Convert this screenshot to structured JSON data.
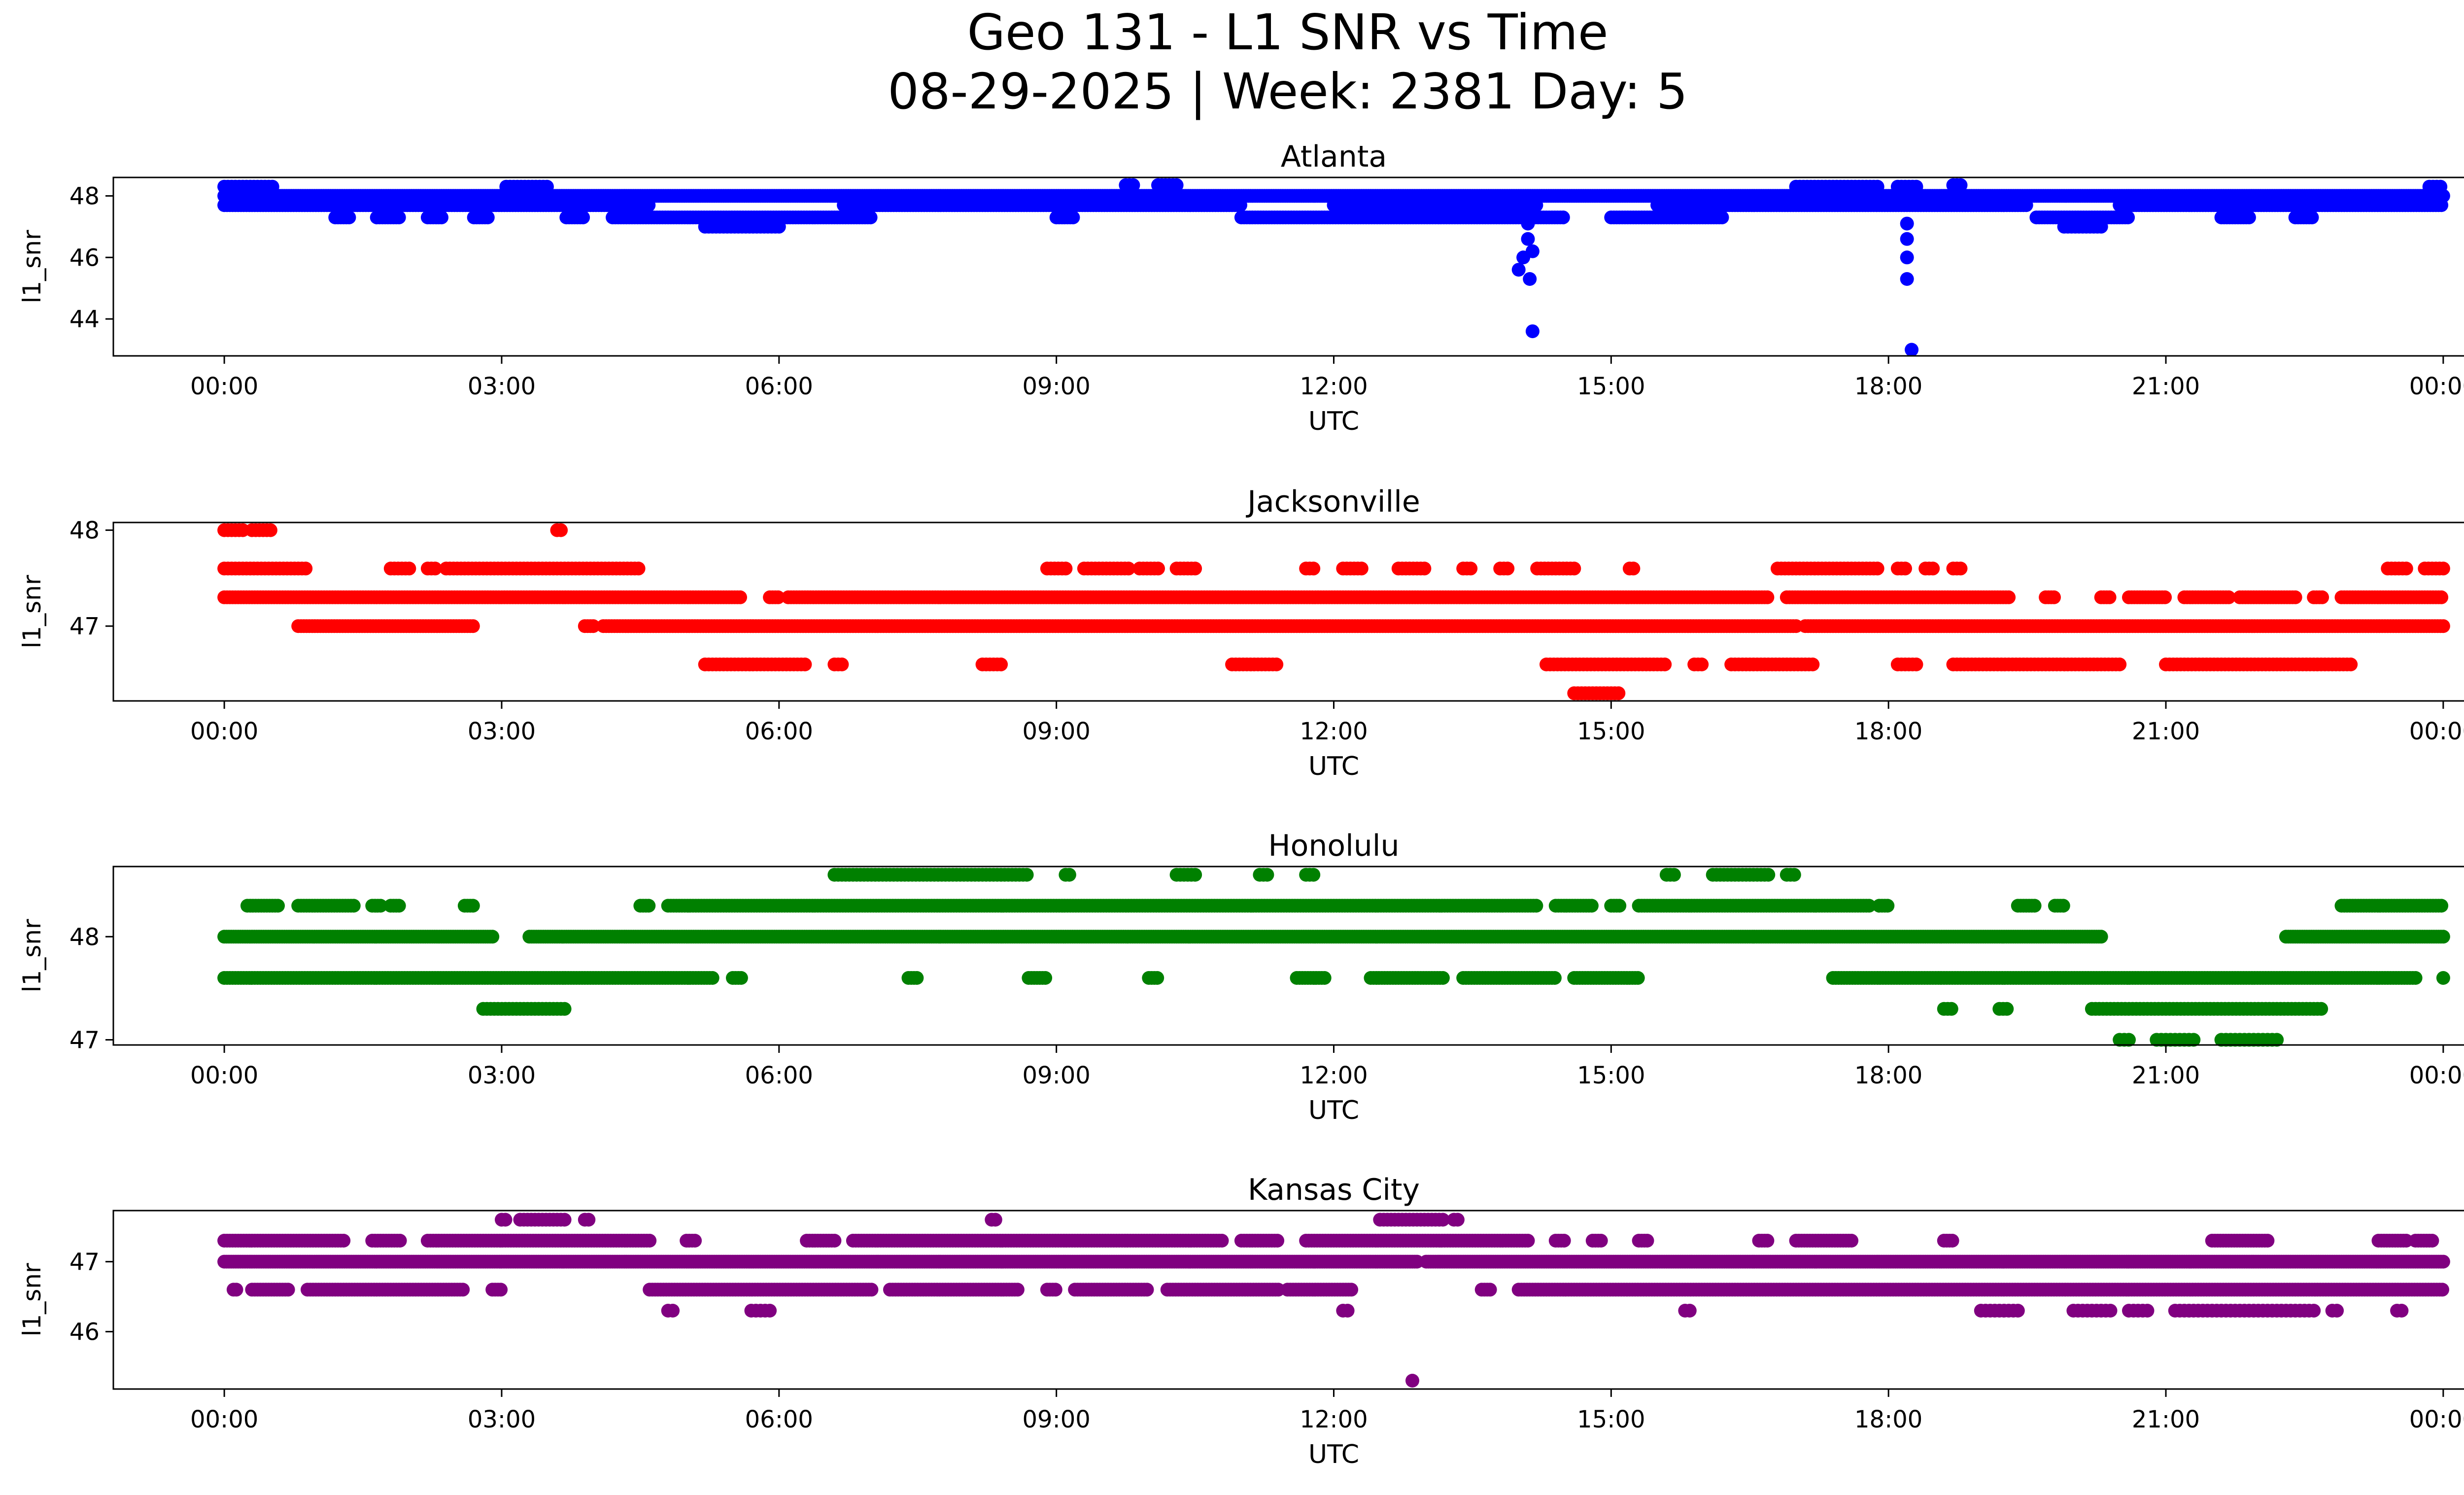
{
  "figure": {
    "title_line1": "Geo 131 - L1 SNR vs Time",
    "title_line2": "08-29-2025 | Week: 2381 Day: 5"
  },
  "chart_data": [
    {
      "type": "scatter",
      "title": "Atlanta",
      "xlabel": "UTC",
      "ylabel": "l1_snr",
      "color": "#0000ff",
      "xlim_hours": [
        -1.2,
        25.2
      ],
      "ylim": [
        42.8,
        48.6
      ],
      "xticks": [
        "00:00",
        "03:00",
        "06:00",
        "09:00",
        "12:00",
        "15:00",
        "18:00",
        "21:00",
        "00:00"
      ],
      "yticks": [
        44,
        46,
        48
      ],
      "bands": [
        {
          "y": 48.3,
          "segs": [
            [
              0,
              0.55
            ],
            [
              3.05,
              3.5
            ],
            [
              17.0,
              17.9
            ],
            [
              18.1,
              18.3
            ],
            [
              23.85,
              24.0
            ]
          ],
          "step": 0.04
        },
        {
          "y": 48.0,
          "segs": [
            [
              0,
              24.0
            ]
          ],
          "step": 0.025
        },
        {
          "y": 47.7,
          "segs": [
            [
              0,
              4.6
            ],
            [
              6.7,
              11.0
            ],
            [
              12.0,
              14.2
            ],
            [
              15.5,
              19.5
            ],
            [
              20.5,
              24.0
            ]
          ],
          "step": 0.03
        },
        {
          "y": 47.3,
          "segs": [
            [
              1.2,
              1.35
            ],
            [
              1.65,
              1.9
            ],
            [
              2.2,
              2.35
            ],
            [
              2.7,
              2.85
            ],
            [
              3.7,
              3.9
            ],
            [
              4.2,
              7.0
            ],
            [
              9.0,
              9.2
            ],
            [
              11.0,
              14.5
            ],
            [
              15.0,
              16.2
            ],
            [
              19.6,
              20.6
            ],
            [
              21.6,
              21.9
            ],
            [
              22.4,
              22.6
            ]
          ],
          "step": 0.03
        },
        {
          "y": 47.0,
          "segs": [
            [
              5.2,
              6.0
            ],
            [
              19.9,
              20.3
            ]
          ],
          "step": 0.04
        },
        {
          "y": 48.35,
          "segs": [
            [
              9.75,
              9.85
            ],
            [
              10.1,
              10.3
            ],
            [
              18.7,
              18.8
            ]
          ],
          "step": 0.04
        }
      ],
      "points": [
        [
          14.05,
          46.0
        ],
        [
          14.1,
          46.6
        ],
        [
          14.15,
          46.2
        ],
        [
          14.0,
          45.6
        ],
        [
          14.12,
          45.3
        ],
        [
          14.15,
          43.6
        ],
        [
          18.2,
          46.6
        ],
        [
          18.2,
          46.0
        ],
        [
          18.2,
          45.3
        ],
        [
          18.25,
          43.0
        ],
        [
          14.1,
          47.1
        ],
        [
          18.2,
          47.1
        ]
      ]
    },
    {
      "type": "scatter",
      "title": "Jacksonville",
      "xlabel": "UTC",
      "ylabel": "l1_snr",
      "color": "#ff0000",
      "xlim_hours": [
        -1.2,
        25.2
      ],
      "ylim": [
        46.22,
        48.08
      ],
      "xticks": [
        "00:00",
        "03:00",
        "06:00",
        "09:00",
        "12:00",
        "15:00",
        "18:00",
        "21:00",
        "00:00"
      ],
      "yticks": [
        47,
        48
      ],
      "bands": [
        {
          "y": 48.0,
          "segs": [
            [
              0.0,
              0.2
            ],
            [
              0.3,
              0.5
            ],
            [
              3.6,
              3.65
            ]
          ],
          "step": 0.04
        },
        {
          "y": 47.6,
          "segs": [
            [
              0,
              0.9
            ],
            [
              1.8,
              2.0
            ],
            [
              2.2,
              2.3
            ],
            [
              2.4,
              4.5
            ],
            [
              8.9,
              9.1
            ],
            [
              9.3,
              9.8
            ],
            [
              9.9,
              10.1
            ],
            [
              10.3,
              10.5
            ],
            [
              11.7,
              11.8
            ],
            [
              12.1,
              12.3
            ],
            [
              12.7,
              13.0
            ],
            [
              13.4,
              13.5
            ],
            [
              13.8,
              13.9
            ],
            [
              14.2,
              14.6
            ],
            [
              15.2,
              15.25
            ],
            [
              16.8,
              17.9
            ],
            [
              18.1,
              18.2
            ],
            [
              18.4,
              18.5
            ],
            [
              18.7,
              18.8
            ],
            [
              23.4,
              23.6
            ],
            [
              23.8,
              24.0
            ]
          ],
          "step": 0.04
        },
        {
          "y": 47.3,
          "segs": [
            [
              0,
              5.6
            ],
            [
              5.9,
              6.0
            ],
            [
              6.1,
              16.7
            ],
            [
              16.9,
              19.3
            ],
            [
              19.7,
              19.8
            ],
            [
              20.3,
              20.4
            ],
            [
              20.6,
              21.0
            ],
            [
              21.2,
              21.7
            ],
            [
              21.8,
              22.4
            ],
            [
              22.6,
              22.7
            ],
            [
              22.9,
              24.0
            ]
          ],
          "step": 0.03
        },
        {
          "y": 47.0,
          "segs": [
            [
              0.8,
              2.7
            ],
            [
              3.9,
              4.0
            ],
            [
              4.1,
              17.0
            ],
            [
              17.1,
              24.0
            ]
          ],
          "step": 0.03
        },
        {
          "y": 46.6,
          "segs": [
            [
              5.2,
              6.3
            ],
            [
              6.6,
              6.7
            ],
            [
              8.2,
              8.4
            ],
            [
              10.9,
              11.4
            ],
            [
              14.3,
              15.6
            ],
            [
              15.9,
              16.0
            ],
            [
              16.3,
              17.2
            ],
            [
              18.1,
              18.3
            ],
            [
              18.7,
              20.5
            ],
            [
              21.0,
              23.0
            ]
          ],
          "step": 0.04
        },
        {
          "y": 46.3,
          "segs": [
            [
              14.6,
              15.1
            ]
          ],
          "step": 0.04
        }
      ],
      "points": []
    },
    {
      "type": "scatter",
      "title": "Honolulu",
      "xlabel": "UTC",
      "ylabel": "l1_snr",
      "color": "#008000",
      "xlim_hours": [
        -1.2,
        25.2
      ],
      "ylim": [
        46.95,
        48.68
      ],
      "xticks": [
        "00:00",
        "03:00",
        "06:00",
        "09:00",
        "12:00",
        "15:00",
        "18:00",
        "21:00",
        "00:00"
      ],
      "yticks": [
        47,
        48
      ],
      "bands": [
        {
          "y": 48.6,
          "segs": [
            [
              6.6,
              8.7
            ],
            [
              9.1,
              9.15
            ],
            [
              10.3,
              10.5
            ],
            [
              11.2,
              11.3
            ],
            [
              11.7,
              11.8
            ],
            [
              15.6,
              15.7
            ],
            [
              16.1,
              16.7
            ],
            [
              16.9,
              17.0
            ]
          ],
          "step": 0.04
        },
        {
          "y": 48.3,
          "segs": [
            [
              0.25,
              0.6
            ],
            [
              0.8,
              1.4
            ],
            [
              1.6,
              1.7
            ],
            [
              1.8,
              1.9
            ],
            [
              2.6,
              2.7
            ],
            [
              4.5,
              4.6
            ],
            [
              4.8,
              14.2
            ],
            [
              14.4,
              14.8
            ],
            [
              15.0,
              15.1
            ],
            [
              15.3,
              17.8
            ],
            [
              17.9,
              18.0
            ],
            [
              19.4,
              19.6
            ],
            [
              19.8,
              19.9
            ],
            [
              22.9,
              24.0
            ]
          ],
          "step": 0.03
        },
        {
          "y": 48.0,
          "segs": [
            [
              0,
              2.9
            ],
            [
              3.3,
              20.3
            ],
            [
              22.3,
              24.0
            ]
          ],
          "step": 0.025
        },
        {
          "y": 47.6,
          "segs": [
            [
              0,
              5.3
            ],
            [
              5.5,
              5.6
            ],
            [
              7.4,
              7.5
            ],
            [
              8.7,
              8.9
            ],
            [
              10.0,
              10.1
            ],
            [
              11.6,
              11.9
            ],
            [
              12.4,
              13.2
            ],
            [
              13.4,
              14.4
            ],
            [
              14.6,
              15.3
            ],
            [
              17.4,
              23.7
            ],
            [
              24.0,
              24.0
            ]
          ],
          "step": 0.03
        },
        {
          "y": 47.3,
          "segs": [
            [
              2.8,
              3.7
            ],
            [
              18.6,
              18.7
            ],
            [
              19.2,
              19.3
            ],
            [
              20.2,
              22.7
            ]
          ],
          "step": 0.04
        },
        {
          "y": 47.0,
          "segs": [
            [
              20.5,
              20.6
            ],
            [
              20.9,
              21.3
            ],
            [
              21.6,
              22.2
            ]
          ],
          "step": 0.05
        }
      ],
      "points": []
    },
    {
      "type": "scatter",
      "title": "Kansas City",
      "xlabel": "UTC",
      "ylabel": "l1_snr",
      "color": "#800080",
      "xlim_hours": [
        -1.2,
        25.2
      ],
      "ylim": [
        45.18,
        47.73
      ],
      "xticks": [
        "00:00",
        "03:00",
        "06:00",
        "09:00",
        "12:00",
        "15:00",
        "18:00",
        "21:00",
        "00:00"
      ],
      "yticks": [
        46,
        47
      ],
      "bands": [
        {
          "y": 47.6,
          "segs": [
            [
              3.0,
              3.05
            ],
            [
              3.2,
              3.7
            ],
            [
              3.9,
              3.95
            ],
            [
              8.3,
              8.35
            ],
            [
              12.5,
              13.2
            ],
            [
              13.3,
              13.35
            ]
          ],
          "step": 0.04
        },
        {
          "y": 47.3,
          "segs": [
            [
              0,
              1.3
            ],
            [
              1.6,
              1.9
            ],
            [
              2.2,
              4.6
            ],
            [
              5.0,
              5.1
            ],
            [
              6.3,
              6.6
            ],
            [
              6.8,
              10.8
            ],
            [
              11.0,
              11.4
            ],
            [
              11.7,
              14.1
            ],
            [
              14.4,
              14.5
            ],
            [
              14.8,
              14.9
            ],
            [
              15.3,
              15.4
            ],
            [
              16.6,
              16.7
            ],
            [
              17.0,
              17.6
            ],
            [
              18.6,
              18.7
            ],
            [
              21.5,
              22.1
            ],
            [
              23.3,
              23.6
            ],
            [
              23.7,
              23.9
            ]
          ],
          "step": 0.03
        },
        {
          "y": 47.0,
          "segs": [
            [
              0,
              12.9
            ],
            [
              13.0,
              24.0
            ]
          ],
          "step": 0.025
        },
        {
          "y": 46.6,
          "segs": [
            [
              0.1,
              0.15
            ],
            [
              0.3,
              0.7
            ],
            [
              0.9,
              2.6
            ],
            [
              2.9,
              3.0
            ],
            [
              4.6,
              7.0
            ],
            [
              7.2,
              8.6
            ],
            [
              8.9,
              9.0
            ],
            [
              9.2,
              10.0
            ],
            [
              10.2,
              11.4
            ],
            [
              11.5,
              12.2
            ],
            [
              13.6,
              13.7
            ],
            [
              14.0,
              24.0
            ]
          ],
          "step": 0.03
        },
        {
          "y": 46.3,
          "segs": [
            [
              4.8,
              4.85
            ],
            [
              5.7,
              5.9
            ],
            [
              12.1,
              12.15
            ],
            [
              15.8,
              15.85
            ],
            [
              19.0,
              19.4
            ],
            [
              20.0,
              20.4
            ],
            [
              20.6,
              20.8
            ],
            [
              21.1,
              22.6
            ],
            [
              22.8,
              22.85
            ],
            [
              23.5,
              23.55
            ]
          ],
          "step": 0.05
        },
        {
          "y": 45.3,
          "segs": [
            [
              12.85,
              12.85
            ]
          ],
          "step": 0.05
        }
      ],
      "points": []
    }
  ]
}
